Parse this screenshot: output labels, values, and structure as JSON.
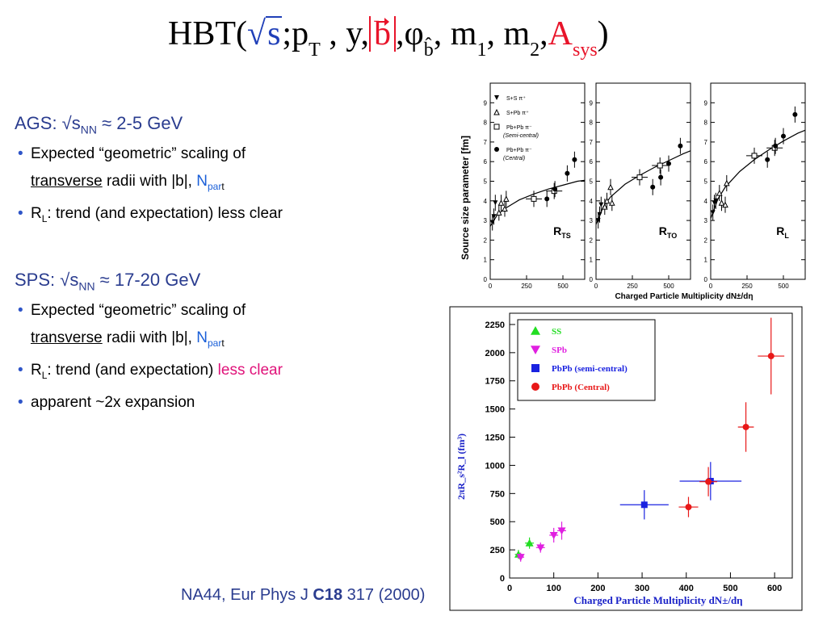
{
  "title": {
    "prefix": "HBT(",
    "sqrt_symbol": "√",
    "s": "s",
    "sep1": ";",
    "p": "p",
    "p_sub": "T",
    "mid": " , y,",
    "b": "b",
    "after_b": ",",
    "phi": "φ",
    "phi_sub": "b̂",
    "masses": ", m",
    "m1_sub": "1",
    "m2": ", m",
    "m2_sub": "2",
    "comma3": ",",
    "A": "A",
    "A_sub": "sys",
    "close": ")"
  },
  "ags": {
    "head_label": "AGS: √s",
    "head_sub": "NN",
    "head_rest": " ≈ 2-5 GeV",
    "b1_line1": "Expected “geometric” scaling of",
    "b1_transverse": "transverse",
    "b1_rest": " radii with |b|, ",
    "b1_n": "N",
    "b1_n_sub": "par",
    "b1_n_t": "t",
    "b2_r": "R",
    "b2_sub": "L",
    "b2_rest": ": trend (and expectation) less clear"
  },
  "sps": {
    "head_label": "SPS: √s",
    "head_sub": "NN",
    "head_rest": " ≈ 17-20 GeV",
    "b1_line1": "Expected “geometric” scaling of",
    "b1_transverse": "transverse",
    "b1_rest": " radii with |b|, ",
    "b1_n": "N",
    "b1_n_sub": "par",
    "b1_n_t": "t",
    "b2_r": "R",
    "b2_sub": "L",
    "b2_rest": ": trend (and expectation) ",
    "b2_highlight": "less clear",
    "b3": "apparent ~2x expansion"
  },
  "citation": {
    "text": "NA44, Eur Phys J ",
    "volume": "C18",
    "rest": " 317 (2000)"
  },
  "colors": {
    "navy": "#2a3c8f",
    "red": "#e8142a",
    "pink": "#e0137a",
    "blue_link": "#1a5fd8",
    "ss_green": "#22dd22",
    "spb_magenta": "#e020e0",
    "pbpb_blue": "#1a22e0",
    "pbpb_red": "#e81818"
  },
  "chart_data": [
    {
      "type": "scatter",
      "title": "",
      "panels": [
        {
          "label": "R",
          "label_sub": "TS"
        },
        {
          "label": "R",
          "label_sub": "TO"
        },
        {
          "label": "R",
          "label_sub": "L"
        }
      ],
      "ylabel": "Source size parameter [fm]",
      "xlabel": "Charged Particle Multiplicity dN±/dη",
      "xlim": [
        0,
        650
      ],
      "ylim": [
        0,
        10
      ],
      "x_ticks": [
        "0",
        "250",
        "500"
      ],
      "y_ticks": [
        "0",
        "1",
        "2",
        "3",
        "4",
        "5",
        "6",
        "7",
        "8",
        "9"
      ],
      "legend": [
        {
          "symbol": "triangle-down-filled",
          "label": "S+S",
          "particle": "π⁺"
        },
        {
          "symbol": "triangle-up-open",
          "label": "S+Pb",
          "particle": "π⁺"
        },
        {
          "symbol": "square-open",
          "label": "Pb+Pb",
          "particle": "π⁻",
          "note": "(Semi-central)"
        },
        {
          "symbol": "circle-filled",
          "label": "Pb+Pb",
          "particle": "π⁻",
          "note": "(Central)"
        }
      ],
      "series": [
        {
          "panel": "RTS",
          "ss": [
            [
              15,
              2.9
            ],
            [
              25,
              3.2
            ],
            [
              35,
              3.9
            ]
          ],
          "spb": [
            [
              60,
              3.4
            ],
            [
              75,
              3.9
            ],
            [
              100,
              3.6
            ],
            [
              110,
              4.1
            ]
          ],
          "pbpb_semi": [
            [
              300,
              4.1
            ],
            [
              440,
              4.5
            ]
          ],
          "pbpb_central": [
            [
              390,
              4.1
            ],
            [
              445,
              4.6
            ],
            [
              530,
              5.4
            ],
            [
              580,
              6.1
            ]
          ],
          "fit": [
            [
              0,
              2.7
            ],
            [
              50,
              3.3
            ],
            [
              100,
              3.6
            ],
            [
              200,
              4.05
            ],
            [
              300,
              4.35
            ],
            [
              400,
              4.6
            ],
            [
              500,
              4.8
            ],
            [
              600,
              5.0
            ],
            [
              650,
              5.05
            ]
          ]
        },
        {
          "panel": "RTO",
          "ss": [
            [
              15,
              3.0
            ],
            [
              25,
              3.3
            ],
            [
              35,
              3.8
            ]
          ],
          "spb": [
            [
              60,
              3.7
            ],
            [
              75,
              4.0
            ],
            [
              100,
              4.7
            ],
            [
              110,
              3.9
            ]
          ],
          "pbpb_semi": [
            [
              300,
              5.2
            ],
            [
              440,
              5.8
            ]
          ],
          "pbpb_central": [
            [
              390,
              4.7
            ],
            [
              445,
              5.2
            ],
            [
              500,
              5.9
            ],
            [
              580,
              6.8
            ]
          ],
          "fit": [
            [
              0,
              2.8
            ],
            [
              50,
              3.7
            ],
            [
              100,
              4.2
            ],
            [
              200,
              4.85
            ],
            [
              300,
              5.3
            ],
            [
              400,
              5.7
            ],
            [
              500,
              6.05
            ],
            [
              600,
              6.4
            ],
            [
              650,
              6.55
            ]
          ]
        },
        {
          "panel": "RL",
          "ss": [
            [
              15,
              3.4
            ],
            [
              25,
              3.9
            ],
            [
              35,
              4.0
            ]
          ],
          "spb": [
            [
              60,
              4.4
            ],
            [
              75,
              3.9
            ],
            [
              100,
              3.8
            ],
            [
              110,
              4.9
            ]
          ],
          "pbpb_semi": [
            [
              300,
              6.3
            ],
            [
              440,
              6.7
            ]
          ],
          "pbpb_central": [
            [
              390,
              6.1
            ],
            [
              445,
              6.8
            ],
            [
              500,
              7.3
            ],
            [
              580,
              8.4
            ]
          ],
          "fit": [
            [
              0,
              3.1
            ],
            [
              50,
              4.1
            ],
            [
              100,
              4.7
            ],
            [
              200,
              5.5
            ],
            [
              300,
              6.1
            ],
            [
              400,
              6.6
            ],
            [
              500,
              7.05
            ],
            [
              600,
              7.45
            ],
            [
              650,
              7.6
            ]
          ]
        }
      ]
    },
    {
      "type": "scatter",
      "title": "",
      "xlabel": "Charged Particle Multiplicity dN±/dη",
      "ylabel": "2πR_s²R_l (fm³)",
      "xlim": [
        0,
        640
      ],
      "ylim": [
        0,
        2350
      ],
      "x_ticks": [
        "0",
        "100",
        "200",
        "300",
        "400",
        "500",
        "600"
      ],
      "y_ticks": [
        "0",
        "250",
        "500",
        "750",
        "1000",
        "1250",
        "1500",
        "1750",
        "2000",
        "2250"
      ],
      "legend_position": "top-left",
      "series": [
        {
          "name": "SS",
          "marker": "triangle-up",
          "color": "#22dd22",
          "points": [
            [
              20,
              210,
              40
            ],
            [
              45,
              310,
              50
            ]
          ],
          "xerr": [
            8,
            10
          ]
        },
        {
          "name": "SPb",
          "marker": "triangle-down",
          "color": "#e020e0",
          "points": [
            [
              25,
              185,
              40
            ],
            [
              70,
              270,
              45
            ],
            [
              100,
              380,
              65
            ],
            [
              118,
              420,
              80
            ]
          ],
          "xerr": [
            8,
            10,
            10,
            10
          ]
        },
        {
          "name": "PbPb (semi-central)",
          "marker": "square",
          "color": "#1a22e0",
          "points": [
            [
              305,
              650,
              130
            ],
            [
              455,
              860,
              170
            ]
          ],
          "xerr": [
            55,
            70
          ]
        },
        {
          "name": "PbPb (Central)",
          "marker": "circle",
          "color": "#e81818",
          "points": [
            [
              405,
              630,
              90
            ],
            [
              450,
              855,
              130
            ],
            [
              535,
              1340,
              220
            ],
            [
              592,
              1970,
              340
            ]
          ],
          "xerr": [
            22,
            20,
            18,
            30
          ]
        }
      ]
    }
  ]
}
